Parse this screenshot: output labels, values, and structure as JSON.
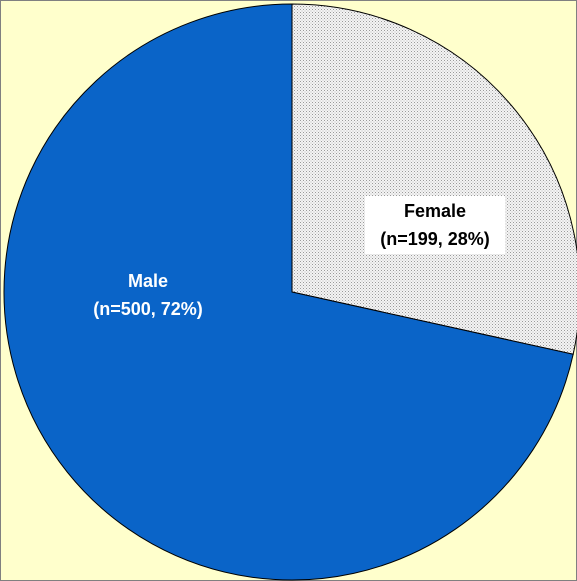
{
  "chart_data": {
    "type": "pie",
    "categories": [
      "Female",
      "Male"
    ],
    "values": [
      199,
      500
    ],
    "value_labels": [
      "(n=199, 28%)",
      "(n=500, 72%)"
    ],
    "colors": [
      "pattern-dots",
      "#0a64c8"
    ]
  }
}
